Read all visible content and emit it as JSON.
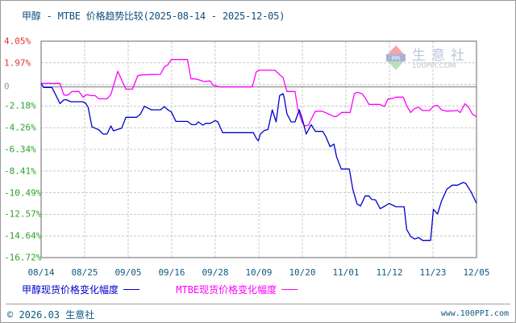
{
  "title": "甲醇 - MTBE 价格趋势比较(2025-08-14 - 2025-12-05)",
  "watermark": {
    "cn": "生意社",
    "en": "100PPI.COM",
    "badge": "PPI"
  },
  "footer": {
    "copyright": "© 2026.03 生意社",
    "site": "www.100PPI.com"
  },
  "legend": [
    {
      "label": "甲醇现货价格变化幅度",
      "color": "#0000cc"
    },
    {
      "label": "MTBE现货价格变化幅度",
      "color": "#ff00ff"
    }
  ],
  "colors": {
    "positive_label": "#e63030",
    "zero_label": "#999999",
    "negative_label": "#2aa12a",
    "grid": "#c8c8c8",
    "axis": "#9a9a9a"
  },
  "chart_data": {
    "type": "line",
    "title": "甲醇 - MTBE 价格趋势比较(2025-08-14 - 2025-12-05)",
    "xlabel": "",
    "ylabel": "价格变化幅度 (%)",
    "x_unit": "days since 2025-08-14",
    "xlim": [
      0,
      113
    ],
    "ylim": [
      -16.72,
      4.05
    ],
    "grid": true,
    "legend_position": "bottom",
    "y_ticks": [
      "4.05%",
      "1.97%",
      "0",
      "-2.18%",
      "-4.26%",
      "-6.34%",
      "-8.41%",
      "-10.49%",
      "-12.57%",
      "-14.64%",
      "-16.72%"
    ],
    "x_ticks": [
      "08/14",
      "08/25",
      "09/05",
      "09/16",
      "09/28",
      "10/09",
      "10/20",
      "11/01",
      "11/12",
      "11/23",
      "12/05"
    ],
    "series": [
      {
        "name": "甲醇现货价格变化幅度",
        "color": "#0000cc",
        "points": [
          [
            0,
            0.0
          ],
          [
            0.7,
            -0.39
          ],
          [
            2.8,
            -0.39
          ],
          [
            3.8,
            -1.12
          ],
          [
            4.9,
            -1.94
          ],
          [
            5.9,
            -1.58
          ],
          [
            6.6,
            -1.58
          ],
          [
            7.7,
            -1.76
          ],
          [
            10.8,
            -1.76
          ],
          [
            11.5,
            -1.89
          ],
          [
            12.2,
            -2.28
          ],
          [
            13.2,
            -4.17
          ],
          [
            14.3,
            -4.34
          ],
          [
            15.0,
            -4.47
          ],
          [
            16.1,
            -4.86
          ],
          [
            17.1,
            -4.86
          ],
          [
            18.1,
            -4.09
          ],
          [
            18.8,
            -4.55
          ],
          [
            19.9,
            -4.42
          ],
          [
            20.9,
            -4.3
          ],
          [
            22.0,
            -3.26
          ],
          [
            24.8,
            -3.26
          ],
          [
            25.8,
            -2.93
          ],
          [
            26.8,
            -2.2
          ],
          [
            28.6,
            -2.54
          ],
          [
            31.0,
            -2.54
          ],
          [
            32.0,
            -2.23
          ],
          [
            32.9,
            -2.54
          ],
          [
            33.8,
            -2.75
          ],
          [
            35.0,
            -3.65
          ],
          [
            38.0,
            -3.65
          ],
          [
            39.1,
            -3.96
          ],
          [
            40.1,
            -3.96
          ],
          [
            40.8,
            -3.7
          ],
          [
            42.0,
            -4.01
          ],
          [
            42.7,
            -3.83
          ],
          [
            43.9,
            -3.83
          ],
          [
            45.2,
            -3.57
          ],
          [
            45.9,
            -3.7
          ],
          [
            47.1,
            -4.73
          ],
          [
            55.1,
            -4.73
          ],
          [
            55.8,
            -5.25
          ],
          [
            56.4,
            -5.51
          ],
          [
            56.9,
            -4.86
          ],
          [
            57.9,
            -4.53
          ],
          [
            58.9,
            -4.42
          ],
          [
            60.0,
            -2.54
          ],
          [
            61.0,
            -3.7
          ],
          [
            61.9,
            -1.17
          ],
          [
            62.8,
            -0.99
          ],
          [
            63.1,
            -1.38
          ],
          [
            63.8,
            -2.92
          ],
          [
            64.9,
            -3.7
          ],
          [
            65.9,
            -3.7
          ],
          [
            67.0,
            -2.54
          ],
          [
            67.8,
            -3.44
          ],
          [
            68.8,
            -4.86
          ],
          [
            70.1,
            -3.96
          ],
          [
            71.2,
            -4.61
          ],
          [
            73.1,
            -4.61
          ],
          [
            73.9,
            -5.12
          ],
          [
            75.0,
            -6.08
          ],
          [
            76.0,
            -5.82
          ],
          [
            76.7,
            -7.06
          ],
          [
            77.9,
            -8.22
          ],
          [
            80.0,
            -8.22
          ],
          [
            80.9,
            -10.16
          ],
          [
            82.0,
            -11.58
          ],
          [
            82.9,
            -11.76
          ],
          [
            84.1,
            -10.81
          ],
          [
            85.1,
            -10.81
          ],
          [
            85.8,
            -11.14
          ],
          [
            86.8,
            -11.19
          ],
          [
            88.0,
            -12.02
          ],
          [
            89.3,
            -11.76
          ],
          [
            90.3,
            -11.53
          ],
          [
            92.1,
            -11.84
          ],
          [
            94.2,
            -11.84
          ],
          [
            94.9,
            -14.03
          ],
          [
            95.9,
            -14.68
          ],
          [
            96.9,
            -14.94
          ],
          [
            98.0,
            -14.8
          ],
          [
            99.0,
            -15.07
          ],
          [
            101.1,
            -15.07
          ],
          [
            101.8,
            -12.09
          ],
          [
            102.9,
            -12.53
          ],
          [
            103.9,
            -11.32
          ],
          [
            105.3,
            -10.16
          ],
          [
            106.7,
            -9.77
          ],
          [
            108.1,
            -9.77
          ],
          [
            109.5,
            -9.51
          ],
          [
            110.2,
            -9.59
          ],
          [
            111.6,
            -10.42
          ],
          [
            113.0,
            -11.5
          ]
        ]
      },
      {
        "name": "MTBE现货价格变化幅度",
        "color": "#ff00ff",
        "points": [
          [
            0,
            0.0
          ],
          [
            4.9,
            0.0
          ],
          [
            5.9,
            -1.12
          ],
          [
            7.0,
            -1.12
          ],
          [
            8.0,
            -0.78
          ],
          [
            9.8,
            -0.78
          ],
          [
            10.9,
            -1.32
          ],
          [
            11.9,
            -1.07
          ],
          [
            12.9,
            -1.17
          ],
          [
            14.0,
            -1.17
          ],
          [
            15.0,
            -1.48
          ],
          [
            17.1,
            -1.48
          ],
          [
            18.1,
            -1.07
          ],
          [
            19.9,
            1.16
          ],
          [
            22.0,
            -0.55
          ],
          [
            23.7,
            -0.55
          ],
          [
            25.1,
            0.74
          ],
          [
            26.2,
            0.82
          ],
          [
            31.0,
            0.87
          ],
          [
            32.0,
            1.59
          ],
          [
            32.9,
            1.78
          ],
          [
            33.8,
            2.29
          ],
          [
            38.0,
            2.29
          ],
          [
            38.9,
            0.43
          ],
          [
            40.1,
            0.43
          ],
          [
            41.2,
            0.31
          ],
          [
            42.2,
            0.18
          ],
          [
            43.9,
            0.23
          ],
          [
            44.6,
            -0.16
          ],
          [
            46.4,
            -0.34
          ],
          [
            54.8,
            -0.34
          ],
          [
            55.8,
            1.08
          ],
          [
            56.5,
            1.26
          ],
          [
            60.7,
            1.26
          ],
          [
            61.7,
            0.9
          ],
          [
            62.8,
            0.56
          ],
          [
            63.8,
            -0.78
          ],
          [
            65.9,
            -0.78
          ],
          [
            66.6,
            -2.41
          ],
          [
            67.7,
            -3.7
          ],
          [
            68.4,
            -4.09
          ],
          [
            69.4,
            -4.01
          ],
          [
            70.1,
            -3.44
          ],
          [
            71.2,
            -2.67
          ],
          [
            72.9,
            -2.67
          ],
          [
            74.6,
            -2.93
          ],
          [
            76.0,
            -3.18
          ],
          [
            76.7,
            -3.18
          ],
          [
            78.0,
            -2.79
          ],
          [
            80.2,
            -2.79
          ],
          [
            81.3,
            -0.99
          ],
          [
            82.0,
            -0.86
          ],
          [
            83.3,
            -0.99
          ],
          [
            84.1,
            -1.38
          ],
          [
            85.1,
            -2.02
          ],
          [
            87.9,
            -2.02
          ],
          [
            89.1,
            -2.23
          ],
          [
            90.0,
            -1.51
          ],
          [
            91.4,
            -1.43
          ],
          [
            92.1,
            -1.32
          ],
          [
            94.0,
            -1.32
          ],
          [
            94.9,
            -2.15
          ],
          [
            95.9,
            -2.79
          ],
          [
            96.9,
            -2.41
          ],
          [
            98.0,
            -2.28
          ],
          [
            99.0,
            -2.61
          ],
          [
            100.8,
            -2.61
          ],
          [
            101.8,
            -2.2
          ],
          [
            102.9,
            -2.1
          ],
          [
            103.9,
            -2.54
          ],
          [
            105.3,
            -2.67
          ],
          [
            108.1,
            -2.61
          ],
          [
            108.8,
            -2.79
          ],
          [
            110.0,
            -1.94
          ],
          [
            110.9,
            -2.28
          ],
          [
            112.0,
            -2.98
          ],
          [
            113.0,
            -3.18
          ]
        ]
      }
    ]
  }
}
